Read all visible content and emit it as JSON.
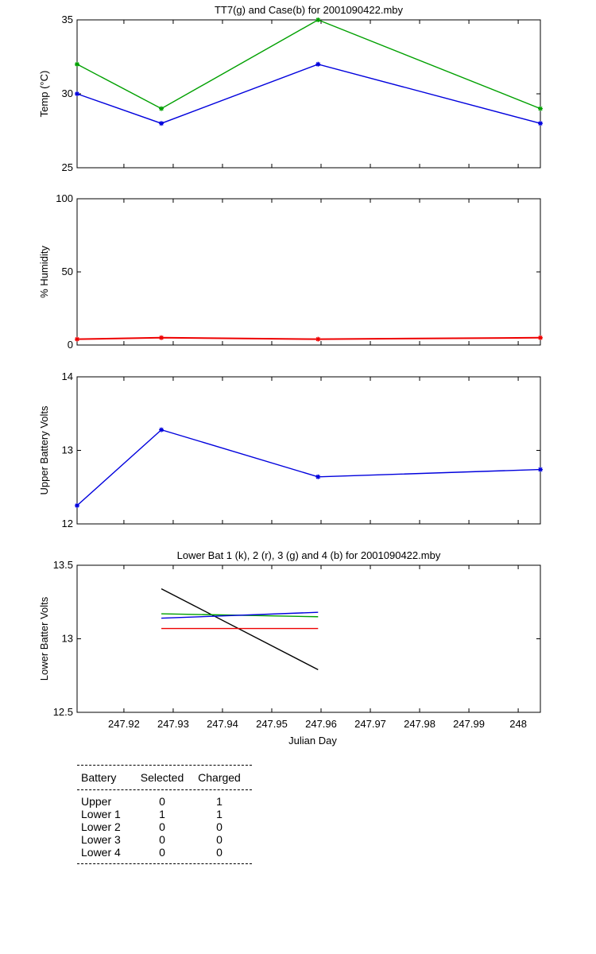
{
  "chart_data": [
    {
      "type": "line",
      "title": "TT7(g) and Case(b) for 2001090422.mby",
      "ylabel": "Temp  (°C)",
      "xlabel": "",
      "xlim": [
        247.9105,
        248.0045
      ],
      "ylim": [
        25,
        35
      ],
      "yticks": [
        25,
        30,
        35
      ],
      "grid": false,
      "series": [
        {
          "color": "#00a000",
          "x": [
            247.9105,
            247.9276,
            247.9594,
            248.0045
          ],
          "y": [
            32,
            29,
            35,
            29
          ]
        },
        {
          "color": "#0000dd",
          "x": [
            247.9105,
            247.9276,
            247.9594,
            248.0045
          ],
          "y": [
            30,
            28,
            32,
            28
          ]
        }
      ]
    },
    {
      "type": "line",
      "title": "",
      "ylabel": "% Humidity",
      "xlabel": "",
      "xlim": [
        247.9105,
        248.0045
      ],
      "ylim": [
        0,
        100
      ],
      "yticks": [
        0,
        50,
        100
      ],
      "grid": false,
      "series": [
        {
          "color": "#ee0000",
          "x": [
            247.9105,
            247.9276,
            247.9594,
            248.0045
          ],
          "y": [
            4,
            5,
            4,
            5
          ]
        }
      ]
    },
    {
      "type": "line",
      "title": "",
      "ylabel": "Upper Battery Volts",
      "xlabel": "",
      "xlim": [
        247.9105,
        248.0045
      ],
      "ylim": [
        12,
        14
      ],
      "yticks": [
        12,
        13,
        14
      ],
      "grid": false,
      "series": [
        {
          "color": "#0000dd",
          "x": [
            247.9105,
            247.9276,
            247.9594,
            248.0045
          ],
          "y": [
            12.25,
            13.28,
            12.64,
            12.74
          ]
        }
      ]
    },
    {
      "type": "line",
      "title": "Lower Bat 1 (k), 2 (r), 3 (g) and 4 (b) for 2001090422.mby",
      "ylabel": "Lower Batter Volts",
      "xlabel": "Julian Day",
      "xlim": [
        247.9105,
        248.0045
      ],
      "ylim": [
        12.5,
        13.5
      ],
      "yticks": [
        12.5,
        13,
        13.5
      ],
      "xticks": [
        247.92,
        247.93,
        247.94,
        247.95,
        247.96,
        247.97,
        247.98,
        247.99,
        248
      ],
      "xtick_labels": [
        "247.92",
        "247.93",
        "247.94",
        "247.95",
        "247.96",
        "247.97",
        "247.98",
        "247.99",
        "248"
      ],
      "grid": false,
      "series": [
        {
          "color": "#000000",
          "x": [
            247.9276,
            247.9594
          ],
          "y": [
            13.34,
            12.79
          ]
        },
        {
          "color": "#ee0000",
          "x": [
            247.9276,
            247.9594
          ],
          "y": [
            13.07,
            13.07
          ]
        },
        {
          "color": "#00a000",
          "x": [
            247.9276,
            247.9594
          ],
          "y": [
            13.17,
            13.15
          ]
        },
        {
          "color": "#0000dd",
          "x": [
            247.9276,
            247.9594
          ],
          "y": [
            13.14,
            13.18
          ]
        }
      ]
    }
  ],
  "battery_table": {
    "headers": [
      "Battery",
      "Selected",
      "Charged"
    ],
    "rows": [
      [
        "Upper",
        "0",
        "1"
      ],
      [
        "Lower 1",
        "1",
        "1"
      ],
      [
        "Lower 2",
        "0",
        "0"
      ],
      [
        "Lower 3",
        "0",
        "0"
      ],
      [
        "Lower 4",
        "0",
        "0"
      ]
    ]
  }
}
